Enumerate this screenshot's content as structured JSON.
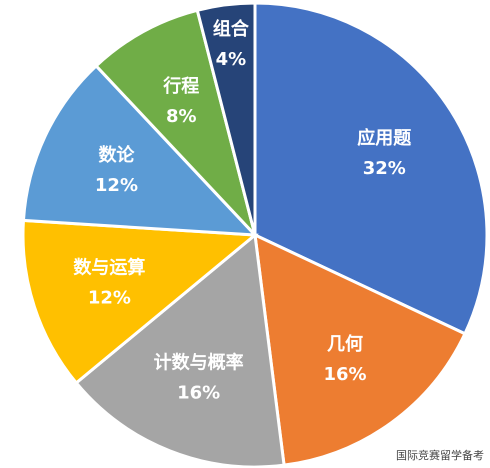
{
  "chart_data": {
    "type": "pie",
    "categories": [
      "应用题",
      "几何",
      "计数与概率",
      "数与运算",
      "数论",
      "行程",
      "组合"
    ],
    "values": [
      32,
      16,
      16,
      12,
      12,
      8,
      4
    ],
    "value_labels": [
      "32%",
      "16%",
      "16%",
      "12%",
      "12%",
      "8%",
      "4%"
    ],
    "colors": [
      "#4472c4",
      "#ed7d31",
      "#a5a5a5",
      "#ffc000",
      "#5b9bd5",
      "#70ad47",
      "#264478"
    ]
  },
  "watermark": "国际竞赛留学备考"
}
